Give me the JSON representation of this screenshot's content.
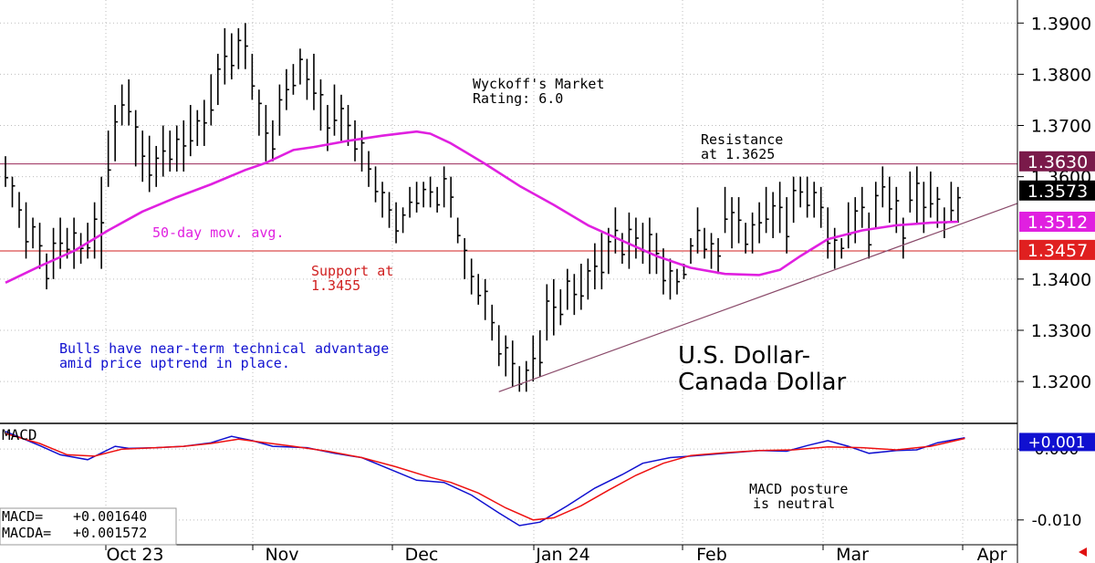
{
  "chart_data": [
    {
      "type": "ohlc",
      "title": "U.S. Dollar-\nCanada Dollar",
      "title_lines": [
        "U.S. Dollar-",
        "Canada Dollar"
      ],
      "ylim": [
        1.312,
        1.3945
      ],
      "y_ticks": [
        "1.3900",
        "1.3800",
        "1.3700",
        "1.3600",
        "1.3400",
        "1.3300",
        "1.3200"
      ],
      "y_tick_values": [
        1.39,
        1.38,
        1.37,
        1.36,
        1.34,
        1.33,
        1.32
      ],
      "x_labels": [
        "Oct 23",
        "Nov",
        "Dec",
        "Jan 24",
        "Feb",
        "Mar",
        "Apr"
      ],
      "grid": true,
      "price_tags": [
        {
          "label": "1.3630",
          "value": 1.363,
          "color": "#7a1a4a"
        },
        {
          "label": "1.3573",
          "value": 1.3573,
          "color": "#000000"
        },
        {
          "label": "1.3512",
          "value": 1.3512,
          "color": "#e020e0"
        },
        {
          "label": "1.3457",
          "value": 1.3457,
          "color": "#e02020"
        }
      ],
      "resistance": 1.3625,
      "support": 1.3455,
      "trendline": [
        {
          "x": 72,
          "y": 1.318
        },
        {
          "x": 143,
          "y": 1.3525
        }
      ],
      "bars": [
        [
          1.364,
          1.358
        ],
        [
          1.36,
          1.354
        ],
        [
          1.357,
          1.35
        ],
        [
          1.355,
          1.344
        ],
        [
          1.352,
          1.346
        ],
        [
          1.351,
          1.342
        ],
        [
          1.345,
          1.338
        ],
        [
          1.35,
          1.34
        ],
        [
          1.352,
          1.342
        ],
        [
          1.35,
          1.344
        ],
        [
          1.352,
          1.342
        ],
        [
          1.349,
          1.343
        ],
        [
          1.351,
          1.344
        ],
        [
          1.355,
          1.344
        ],
        [
          1.36,
          1.342
        ],
        [
          1.369,
          1.358
        ],
        [
          1.374,
          1.363
        ],
        [
          1.378,
          1.37
        ],
        [
          1.379,
          1.37
        ],
        [
          1.373,
          1.362
        ],
        [
          1.369,
          1.359
        ],
        [
          1.368,
          1.357
        ],
        [
          1.366,
          1.358
        ],
        [
          1.37,
          1.36
        ],
        [
          1.369,
          1.361
        ],
        [
          1.37,
          1.361
        ],
        [
          1.371,
          1.361
        ],
        [
          1.374,
          1.364
        ],
        [
          1.373,
          1.366
        ],
        [
          1.375,
          1.366
        ],
        [
          1.38,
          1.37
        ],
        [
          1.384,
          1.374
        ],
        [
          1.389,
          1.378
        ],
        [
          1.388,
          1.379
        ],
        [
          1.389,
          1.381
        ],
        [
          1.39,
          1.381
        ],
        [
          1.384,
          1.375
        ],
        [
          1.377,
          1.368
        ],
        [
          1.374,
          1.363
        ],
        [
          1.371,
          1.363
        ],
        [
          1.378,
          1.368
        ],
        [
          1.381,
          1.373
        ],
        [
          1.382,
          1.376
        ],
        [
          1.385,
          1.378
        ],
        [
          1.383,
          1.375
        ],
        [
          1.384,
          1.373
        ],
        [
          1.379,
          1.369
        ],
        [
          1.374,
          1.365
        ],
        [
          1.378,
          1.368
        ],
        [
          1.376,
          1.367
        ],
        [
          1.374,
          1.366
        ],
        [
          1.371,
          1.363
        ],
        [
          1.369,
          1.361
        ],
        [
          1.365,
          1.358
        ],
        [
          1.362,
          1.355
        ],
        [
          1.359,
          1.352
        ],
        [
          1.357,
          1.35
        ],
        [
          1.355,
          1.347
        ],
        [
          1.354,
          1.349
        ],
        [
          1.358,
          1.352
        ],
        [
          1.359,
          1.353
        ],
        [
          1.359,
          1.354
        ],
        [
          1.36,
          1.354
        ],
        [
          1.358,
          1.353
        ],
        [
          1.362,
          1.354
        ],
        [
          1.36,
          1.352
        ],
        [
          1.352,
          1.347
        ],
        [
          1.348,
          1.34
        ],
        [
          1.344,
          1.337
        ],
        [
          1.341,
          1.335
        ],
        [
          1.34,
          1.332
        ],
        [
          1.335,
          1.328
        ],
        [
          1.331,
          1.323
        ],
        [
          1.329,
          1.321
        ],
        [
          1.328,
          1.319
        ],
        [
          1.323,
          1.318
        ],
        [
          1.324,
          1.318
        ],
        [
          1.329,
          1.32
        ],
        [
          1.33,
          1.321
        ],
        [
          1.339,
          1.328
        ],
        [
          1.34,
          1.329
        ],
        [
          1.338,
          1.331
        ],
        [
          1.342,
          1.334
        ],
        [
          1.341,
          1.333
        ],
        [
          1.343,
          1.334
        ],
        [
          1.344,
          1.336
        ],
        [
          1.347,
          1.338
        ],
        [
          1.349,
          1.338
        ],
        [
          1.35,
          1.341
        ],
        [
          1.354,
          1.345
        ],
        [
          1.349,
          1.343
        ],
        [
          1.353,
          1.342
        ],
        [
          1.352,
          1.344
        ],
        [
          1.351,
          1.343
        ],
        [
          1.352,
          1.341
        ],
        [
          1.349,
          1.341
        ],
        [
          1.346,
          1.337
        ],
        [
          1.344,
          1.336
        ],
        [
          1.342,
          1.337
        ],
        [
          1.343,
          1.34
        ],
        [
          1.348,
          1.343
        ],
        [
          1.354,
          1.345
        ],
        [
          1.35,
          1.344
        ],
        [
          1.349,
          1.342
        ],
        [
          1.348,
          1.341
        ],
        [
          1.358,
          1.349
        ],
        [
          1.356,
          1.346
        ],
        [
          1.356,
          1.347
        ],
        [
          1.351,
          1.345
        ],
        [
          1.353,
          1.345
        ],
        [
          1.355,
          1.347
        ],
        [
          1.358,
          1.349
        ],
        [
          1.357,
          1.348
        ],
        [
          1.359,
          1.349
        ],
        [
          1.356,
          1.345
        ],
        [
          1.36,
          1.351
        ],
        [
          1.36,
          1.354
        ],
        [
          1.36,
          1.352
        ],
        [
          1.359,
          1.352
        ],
        [
          1.358,
          1.35
        ],
        [
          1.354,
          1.344
        ],
        [
          1.35,
          1.342
        ],
        [
          1.348,
          1.344
        ],
        [
          1.355,
          1.346
        ],
        [
          1.356,
          1.347
        ],
        [
          1.358,
          1.35
        ],
        [
          1.353,
          1.344
        ],
        [
          1.359,
          1.35
        ],
        [
          1.362,
          1.354
        ],
        [
          1.36,
          1.351
        ],
        [
          1.358,
          1.349
        ],
        [
          1.352,
          1.344
        ],
        [
          1.361,
          1.353
        ],
        [
          1.362,
          1.351
        ],
        [
          1.359,
          1.349
        ],
        [
          1.361,
          1.352
        ],
        [
          1.358,
          1.35
        ],
        [
          1.354,
          1.348
        ],
        [
          1.359,
          1.351
        ],
        [
          1.358,
          1.351
        ]
      ],
      "ma_label": "50-day mov. avg.",
      "ma": [
        [
          0,
          1.3393
        ],
        [
          5,
          1.3425
        ],
        [
          10,
          1.3455
        ],
        [
          15,
          1.3495
        ],
        [
          20,
          1.3532
        ],
        [
          25,
          1.356
        ],
        [
          30,
          1.3585
        ],
        [
          35,
          1.3613
        ],
        [
          38,
          1.3627
        ],
        [
          42,
          1.3652
        ],
        [
          45,
          1.3658
        ],
        [
          50,
          1.367
        ],
        [
          55,
          1.368
        ],
        [
          58,
          1.3685
        ],
        [
          60,
          1.3688
        ],
        [
          62,
          1.3684
        ],
        [
          65,
          1.3665
        ],
        [
          70,
          1.3625
        ],
        [
          75,
          1.3582
        ],
        [
          80,
          1.3545
        ],
        [
          85,
          1.3505
        ],
        [
          90,
          1.3475
        ],
        [
          95,
          1.3445
        ],
        [
          100,
          1.3422
        ],
        [
          105,
          1.341
        ],
        [
          110,
          1.3408
        ],
        [
          113,
          1.3418
        ],
        [
          116,
          1.3445
        ],
        [
          120,
          1.3478
        ],
        [
          125,
          1.3495
        ],
        [
          130,
          1.3505
        ],
        [
          135,
          1.351
        ],
        [
          139,
          1.3512
        ]
      ],
      "annotations": {
        "wyckoff": [
          "Wyckoff's Market",
          "Rating: 6.0"
        ],
        "resistance": [
          "Resistance",
          "at 1.3625"
        ],
        "support": [
          "Support at",
          "1.3455"
        ],
        "bulls": [
          "Bulls have near-term technical advantage",
          "amid price uptrend in place."
        ]
      }
    },
    {
      "type": "line",
      "title": "MACD",
      "ylim": [
        -0.0135,
        0.0035
      ],
      "y_ticks": [
        "0.000",
        "-0.010"
      ],
      "y_tick_values": [
        0.0,
        -0.01
      ],
      "price_tag": "+0.001",
      "series": [
        {
          "name": "MACD",
          "color": "#1010d0",
          "values": [
            [
              0,
              0.0025
            ],
            [
              5,
              0.0005
            ],
            [
              8,
              -0.0008
            ],
            [
              12,
              -0.0015
            ],
            [
              16,
              0.0004
            ],
            [
              18,
              0.0001
            ],
            [
              22,
              0.0002
            ],
            [
              26,
              0.0004
            ],
            [
              30,
              0.0009
            ],
            [
              33,
              0.0018
            ],
            [
              36,
              0.0012
            ],
            [
              39,
              0.0004
            ],
            [
              44,
              0.0002
            ],
            [
              48,
              -0.0006
            ],
            [
              52,
              -0.0012
            ],
            [
              56,
              -0.0028
            ],
            [
              60,
              -0.0044
            ],
            [
              64,
              -0.0047
            ],
            [
              68,
              -0.0065
            ],
            [
              72,
              -0.009
            ],
            [
              75,
              -0.0108
            ],
            [
              78,
              -0.0103
            ],
            [
              82,
              -0.008
            ],
            [
              86,
              -0.0055
            ],
            [
              90,
              -0.0036
            ],
            [
              93,
              -0.002
            ],
            [
              97,
              -0.0012
            ],
            [
              101,
              -0.0009
            ],
            [
              105,
              -0.0006
            ],
            [
              110,
              -0.0002
            ],
            [
              114,
              -0.0003
            ],
            [
              117,
              0.0005
            ],
            [
              120,
              0.0012
            ],
            [
              123,
              0.0004
            ],
            [
              126,
              -0.0006
            ],
            [
              130,
              -0.0002
            ],
            [
              133,
              -0.0001
            ],
            [
              136,
              0.0009
            ],
            [
              140,
              0.0016
            ]
          ]
        },
        {
          "name": "MACDA",
          "color": "#ee1010",
          "values": [
            [
              0,
              0.0022
            ],
            [
              5,
              0.0008
            ],
            [
              9,
              -0.0008
            ],
            [
              13,
              -0.001
            ],
            [
              17,
              0.0
            ],
            [
              22,
              0.0002
            ],
            [
              26,
              0.0004
            ],
            [
              30,
              0.0008
            ],
            [
              34,
              0.0014
            ],
            [
              38,
              0.0009
            ],
            [
              42,
              0.0004
            ],
            [
              47,
              -0.0003
            ],
            [
              52,
              -0.0012
            ],
            [
              57,
              -0.0025
            ],
            [
              62,
              -0.004
            ],
            [
              65,
              -0.0047
            ],
            [
              69,
              -0.0062
            ],
            [
              73,
              -0.0083
            ],
            [
              77,
              -0.01
            ],
            [
              80,
              -0.0097
            ],
            [
              84,
              -0.008
            ],
            [
              88,
              -0.0058
            ],
            [
              92,
              -0.0037
            ],
            [
              96,
              -0.002
            ],
            [
              100,
              -0.0009
            ],
            [
              105,
              -0.0005
            ],
            [
              110,
              -0.0002
            ],
            [
              115,
              -0.0001
            ],
            [
              120,
              0.0003
            ],
            [
              125,
              0.0002
            ],
            [
              130,
              -0.0001
            ],
            [
              135,
              0.0004
            ],
            [
              140,
              0.0015
            ]
          ]
        }
      ],
      "readout": [
        {
          "label": "MACD=",
          "value": "+0.001640"
        },
        {
          "label": "MACDA=",
          "value": "+0.001572"
        }
      ],
      "annotation": [
        "MACD posture",
        "is neutral"
      ]
    }
  ]
}
